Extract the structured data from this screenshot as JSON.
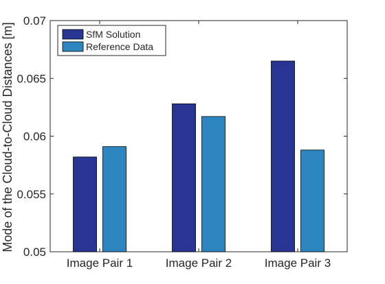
{
  "chart_data": {
    "type": "bar",
    "title": "",
    "xlabel": "",
    "ylabel": "Mode of the Cloud-to-Cloud Distances [m]",
    "categories": [
      "Image Pair 1",
      "Image Pair 2",
      "Image Pair 3"
    ],
    "series": [
      {
        "name": "SfM Solution",
        "values": [
          0.0582,
          0.0628,
          0.0665
        ],
        "color": "#283593"
      },
      {
        "name": "Reference Data",
        "values": [
          0.0591,
          0.0617,
          0.0588
        ],
        "color": "#2e86c1"
      }
    ],
    "ylim": [
      0.05,
      0.07
    ],
    "yticks": [
      0.05,
      0.055,
      0.06,
      0.065,
      0.07
    ],
    "ytick_labels": [
      "0.05",
      "0.055",
      "0.06",
      "0.065",
      "0.07"
    ],
    "grid": false,
    "legend_position": "top-left"
  }
}
